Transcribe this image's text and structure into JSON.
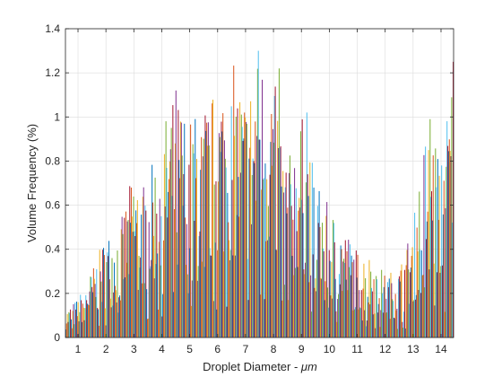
{
  "chart_data": {
    "type": "bar",
    "title": "",
    "xlabel_text": "Droplet Diameter - ",
    "xlabel_unit": "μm",
    "ylabel": "Volume Frequency (%)",
    "xlim": [
      0.55,
      14.45
    ],
    "ylim": [
      0,
      1.4
    ],
    "grid": true,
    "x_ticks": [
      "1",
      "2",
      "3",
      "4",
      "5",
      "6",
      "7",
      "8",
      "9",
      "10",
      "11",
      "12",
      "13",
      "14"
    ],
    "y_ticks": [
      "0",
      "0.2",
      "0.4",
      "0.6",
      "0.8",
      "1",
      "1.2",
      "1.4"
    ],
    "palette": [
      "#0072BD",
      "#D95319",
      "#EDB120",
      "#7E2F8E",
      "#77AC30",
      "#4DBEEE",
      "#A2142F"
    ],
    "group_bar_count": 36,
    "envelope": [
      [
        0.6,
        0.13
      ],
      [
        1.0,
        0.18
      ],
      [
        1.5,
        0.31
      ],
      [
        2.0,
        0.47
      ],
      [
        2.5,
        0.51
      ],
      [
        3.0,
        0.77
      ],
      [
        3.5,
        0.71
      ],
      [
        4.0,
        0.96
      ],
      [
        4.5,
        1.12
      ],
      [
        5.0,
        1.0
      ],
      [
        5.5,
        1.06
      ],
      [
        6.0,
        1.14
      ],
      [
        6.5,
        1.26
      ],
      [
        7.0,
        1.12
      ],
      [
        7.5,
        1.3
      ],
      [
        8.0,
        1.22
      ],
      [
        8.5,
        0.8
      ],
      [
        9.0,
        1.02
      ],
      [
        9.5,
        0.74
      ],
      [
        10.0,
        0.59
      ],
      [
        10.5,
        0.51
      ],
      [
        11.0,
        0.4
      ],
      [
        11.5,
        0.38
      ],
      [
        12.0,
        0.29
      ],
      [
        12.5,
        0.32
      ],
      [
        13.0,
        0.52
      ],
      [
        13.5,
        0.99
      ],
      [
        14.0,
        0.86
      ],
      [
        14.45,
        1.25
      ]
    ],
    "peaks": [
      {
        "x": 4.5,
        "y": 1.12
      },
      {
        "x": 6.4,
        "y": 1.26
      },
      {
        "x": 7.45,
        "y": 1.3
      },
      {
        "x": 8.2,
        "y": 1.22
      },
      {
        "x": 9.2,
        "y": 1.02
      },
      {
        "x": 13.6,
        "y": 0.99
      },
      {
        "x": 14.45,
        "y": 1.25
      }
    ]
  }
}
